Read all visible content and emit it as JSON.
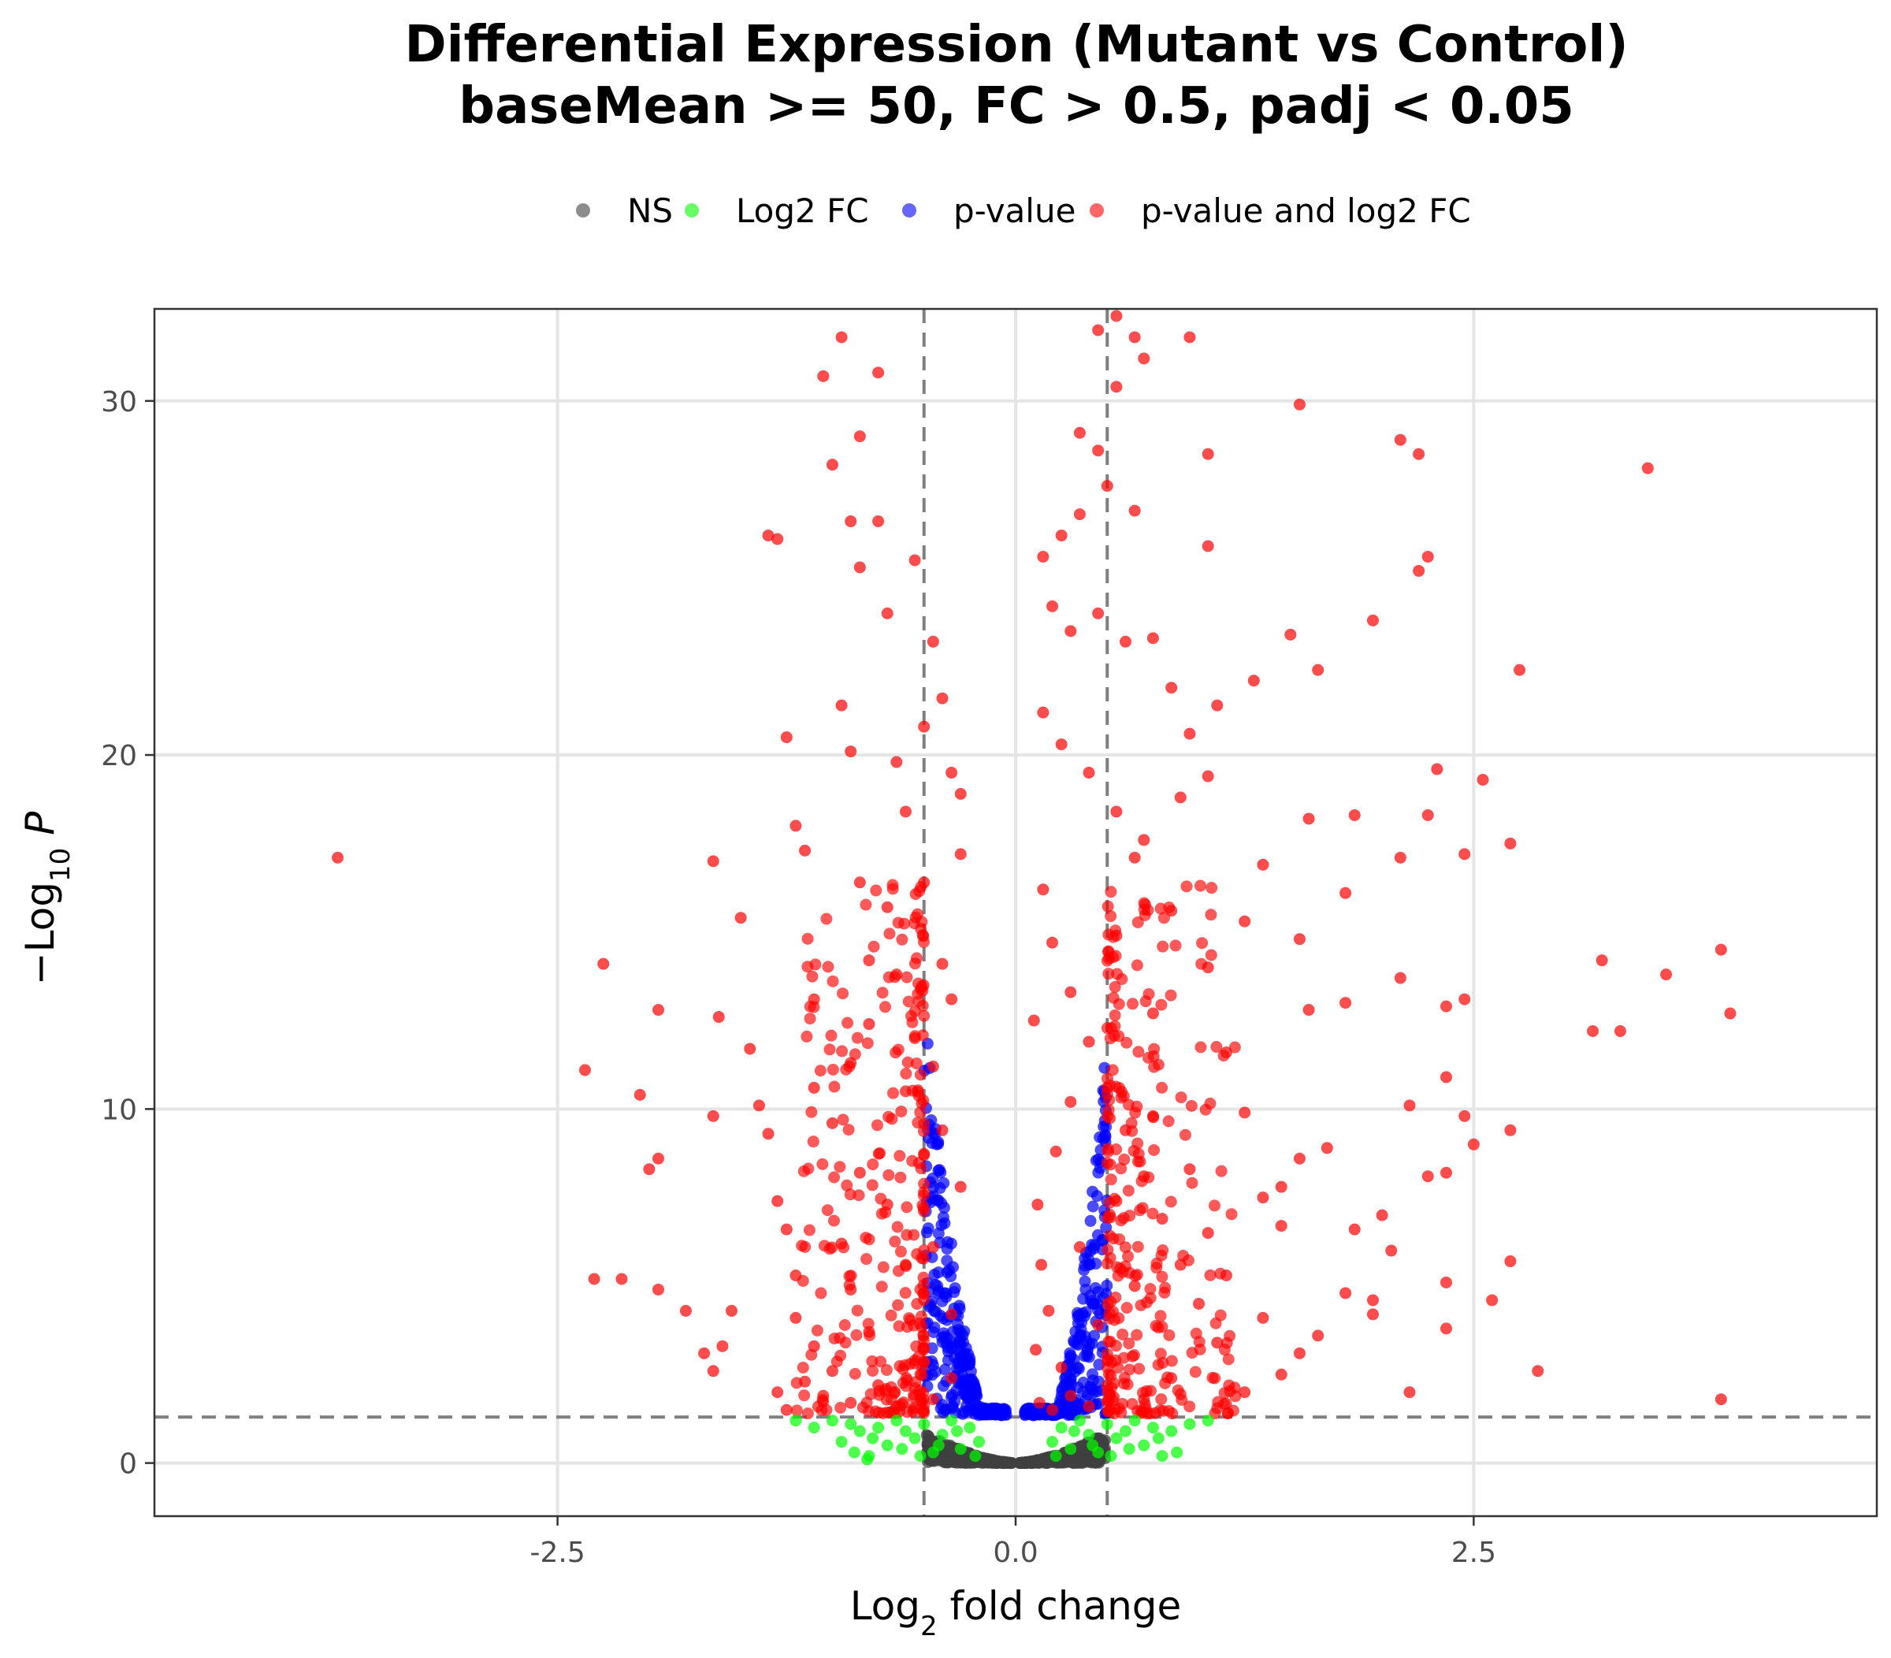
{
  "chart_data": {
    "type": "scatter",
    "title": "Differential Expression (Mutant vs Control)",
    "subtitle": "baseMean >= 50, FC > 0.5, padj < 0.05",
    "xlabel": {
      "prefix": "Log",
      "sub": "2",
      "suffix": " fold change"
    },
    "ylabel": {
      "prefix": "−Log",
      "sub": "10",
      "suffix": " P"
    },
    "xlim": [
      -4.7,
      4.7
    ],
    "ylim": [
      -1.5,
      32.6
    ],
    "x_ticks": [
      -2.5,
      0,
      2.5
    ],
    "x_tick_labels": [
      "-2.5",
      "0.0",
      "2.5"
    ],
    "y_ticks": [
      0,
      10,
      20,
      30
    ],
    "y_tick_labels": [
      "0",
      "10",
      "20",
      "30"
    ],
    "thresholds": {
      "fc": 0.5,
      "neg_log10_p": 1.3
    },
    "grid": true,
    "legend_position": "top",
    "series": [
      {
        "name": "NS",
        "color": "#404040"
      },
      {
        "name": "Log2 FC",
        "color": "#00ff00"
      },
      {
        "name": "p-value",
        "color": "#0000ff"
      },
      {
        "name": "p-value and log2 FC",
        "color": "#ff0000"
      }
    ],
    "points": [
      [
        -3.7,
        17.1,
        3
      ],
      [
        -2.35,
        11.1,
        3
      ],
      [
        -2.25,
        14.1,
        3
      ],
      [
        -2.3,
        5.2,
        3
      ],
      [
        -2.15,
        5.2,
        3
      ],
      [
        -2.0,
        8.3,
        3
      ],
      [
        -1.95,
        8.6,
        3
      ],
      [
        -2.05,
        10.4,
        3
      ],
      [
        -1.95,
        12.8,
        3
      ],
      [
        -1.95,
        4.9,
        3
      ],
      [
        -1.8,
        4.3,
        3
      ],
      [
        -1.7,
        3.1,
        3
      ],
      [
        -1.6,
        3.3,
        3
      ],
      [
        -1.55,
        4.3,
        3
      ],
      [
        -1.65,
        2.6,
        3
      ],
      [
        -1.65,
        9.8,
        3
      ],
      [
        -1.62,
        12.6,
        3
      ],
      [
        -1.65,
        17.0,
        3
      ],
      [
        -1.5,
        15.4,
        3
      ],
      [
        -1.45,
        11.7,
        3
      ],
      [
        -1.4,
        10.1,
        3
      ],
      [
        -1.35,
        9.3,
        3
      ],
      [
        -1.3,
        7.4,
        3
      ],
      [
        -1.25,
        6.6,
        3
      ],
      [
        -1.2,
        5.3,
        3
      ],
      [
        -1.35,
        26.2,
        3
      ],
      [
        -1.3,
        26.1,
        3
      ],
      [
        -1.25,
        20.5,
        3
      ],
      [
        -1.2,
        18.0,
        3
      ],
      [
        -1.15,
        17.3,
        3
      ],
      [
        -1.1,
        13.1,
        3
      ],
      [
        -1.05,
        30.7,
        3
      ],
      [
        -1.0,
        28.2,
        3
      ],
      [
        -0.95,
        31.8,
        3
      ],
      [
        -0.85,
        29.0,
        3
      ],
      [
        -0.9,
        26.6,
        3
      ],
      [
        -0.85,
        25.3,
        3
      ],
      [
        -0.75,
        30.8,
        3
      ],
      [
        -0.75,
        26.6,
        3
      ],
      [
        -0.95,
        21.4,
        3
      ],
      [
        -0.9,
        20.1,
        3
      ],
      [
        -0.85,
        16.4,
        3
      ],
      [
        -0.8,
        12.4,
        3
      ],
      [
        -0.7,
        24.0,
        3
      ],
      [
        -0.65,
        19.8,
        3
      ],
      [
        -0.6,
        18.4,
        3
      ],
      [
        -0.55,
        25.5,
        3
      ],
      [
        -0.45,
        23.2,
        3
      ],
      [
        -0.5,
        20.8,
        3
      ],
      [
        -0.4,
        21.6,
        3
      ],
      [
        -0.35,
        19.5,
        3
      ],
      [
        -0.3,
        18.9,
        3
      ],
      [
        -1.1,
        10.6,
        3
      ],
      [
        -1.0,
        9.6,
        3
      ],
      [
        -0.9,
        11.3,
        3
      ],
      [
        -0.85,
        8.2,
        3
      ],
      [
        -0.8,
        14.2,
        3
      ],
      [
        -0.7,
        15.7,
        3
      ],
      [
        -0.65,
        13.8,
        3
      ],
      [
        -0.6,
        10.5,
        3
      ],
      [
        -0.55,
        12.0,
        3
      ],
      [
        -0.5,
        16.4,
        3
      ],
      [
        -0.45,
        11.2,
        3
      ],
      [
        -0.4,
        14.1,
        3
      ],
      [
        -0.35,
        13.1,
        3
      ],
      [
        -0.3,
        17.2,
        3
      ],
      [
        -1.2,
        4.1,
        3
      ],
      [
        -1.1,
        3.3,
        3
      ],
      [
        -1.0,
        2.6,
        3
      ],
      [
        -0.95,
        6.2,
        3
      ],
      [
        -0.9,
        4.9,
        3
      ],
      [
        -0.8,
        3.7,
        3
      ],
      [
        -0.7,
        7.3,
        3
      ],
      [
        -0.6,
        5.6,
        3
      ],
      [
        -0.5,
        8.7,
        3
      ],
      [
        -0.45,
        6.1,
        3
      ],
      [
        -0.4,
        9.4,
        3
      ],
      [
        -0.35,
        4.2,
        3
      ],
      [
        -0.3,
        7.8,
        3
      ],
      [
        -1.3,
        2.0,
        3
      ],
      [
        -1.25,
        1.5,
        3
      ],
      [
        -1.15,
        2.3,
        3
      ],
      [
        -1.05,
        1.9,
        3
      ],
      [
        -0.9,
        1.7,
        3
      ],
      [
        -0.75,
        2.2,
        3
      ],
      [
        -0.65,
        1.6,
        3
      ],
      [
        -0.55,
        2.9,
        3
      ],
      [
        -0.45,
        1.8,
        3
      ],
      [
        -0.35,
        2.4,
        3
      ],
      [
        0.45,
        32.0,
        3
      ],
      [
        0.55,
        32.4,
        3
      ],
      [
        0.65,
        31.8,
        3
      ],
      [
        0.7,
        31.2,
        3
      ],
      [
        0.55,
        30.4,
        3
      ],
      [
        0.95,
        31.8,
        3
      ],
      [
        0.35,
        29.1,
        3
      ],
      [
        0.45,
        28.6,
        3
      ],
      [
        1.05,
        28.5,
        3
      ],
      [
        0.5,
        27.6,
        3
      ],
      [
        0.35,
        26.8,
        3
      ],
      [
        0.25,
        26.2,
        3
      ],
      [
        0.65,
        26.9,
        3
      ],
      [
        0.15,
        25.6,
        3
      ],
      [
        1.05,
        25.9,
        3
      ],
      [
        1.55,
        29.9,
        3
      ],
      [
        2.1,
        28.9,
        3
      ],
      [
        2.2,
        28.5,
        3
      ],
      [
        2.25,
        25.6,
        3
      ],
      [
        2.2,
        25.2,
        3
      ],
      [
        3.45,
        28.1,
        3
      ],
      [
        0.2,
        24.2,
        3
      ],
      [
        0.3,
        23.5,
        3
      ],
      [
        0.45,
        24.0,
        3
      ],
      [
        0.6,
        23.2,
        3
      ],
      [
        0.75,
        23.3,
        3
      ],
      [
        0.85,
        21.9,
        3
      ],
      [
        1.5,
        23.4,
        3
      ],
      [
        1.65,
        22.4,
        3
      ],
      [
        1.95,
        23.8,
        3
      ],
      [
        2.75,
        22.4,
        3
      ],
      [
        0.15,
        21.2,
        3
      ],
      [
        0.25,
        20.3,
        3
      ],
      [
        0.4,
        19.5,
        3
      ],
      [
        0.55,
        18.4,
        3
      ],
      [
        0.7,
        17.6,
        3
      ],
      [
        0.95,
        20.6,
        3
      ],
      [
        1.05,
        19.4,
        3
      ],
      [
        1.6,
        18.2,
        3
      ],
      [
        1.85,
        18.3,
        3
      ],
      [
        2.3,
        19.6,
        3
      ],
      [
        2.55,
        19.3,
        3
      ],
      [
        2.25,
        18.3,
        3
      ],
      [
        2.1,
        17.1,
        3
      ],
      [
        2.45,
        17.2,
        3
      ],
      [
        2.7,
        17.5,
        3
      ],
      [
        1.8,
        16.1,
        3
      ],
      [
        1.55,
        14.8,
        3
      ],
      [
        1.6,
        12.8,
        3
      ],
      [
        1.8,
        13.0,
        3
      ],
      [
        2.1,
        13.7,
        3
      ],
      [
        2.35,
        12.9,
        3
      ],
      [
        2.45,
        13.1,
        3
      ],
      [
        3.2,
        14.2,
        3
      ],
      [
        3.55,
        13.8,
        3
      ],
      [
        3.85,
        14.5,
        3
      ],
      [
        3.9,
        12.7,
        3
      ],
      [
        3.3,
        12.2,
        3
      ],
      [
        3.15,
        12.2,
        3
      ],
      [
        2.15,
        10.1,
        3
      ],
      [
        2.35,
        10.9,
        3
      ],
      [
        2.45,
        9.8,
        3
      ],
      [
        2.5,
        9.0,
        3
      ],
      [
        2.7,
        9.4,
        3
      ],
      [
        2.25,
        8.1,
        3
      ],
      [
        2.35,
        8.2,
        3
      ],
      [
        1.7,
        8.9,
        3
      ],
      [
        1.55,
        8.6,
        3
      ],
      [
        1.35,
        7.5,
        3
      ],
      [
        1.45,
        7.8,
        3
      ],
      [
        2.0,
        7.0,
        3
      ],
      [
        2.05,
        6.0,
        3
      ],
      [
        1.85,
        6.6,
        3
      ],
      [
        2.35,
        5.1,
        3
      ],
      [
        2.7,
        5.7,
        3
      ],
      [
        2.6,
        4.6,
        3
      ],
      [
        2.35,
        3.8,
        3
      ],
      [
        2.85,
        2.6,
        3
      ],
      [
        2.15,
        2.0,
        3
      ],
      [
        3.85,
        1.8,
        3
      ],
      [
        1.95,
        4.6,
        3
      ],
      [
        1.8,
        4.8,
        3
      ],
      [
        1.95,
        4.2,
        3
      ],
      [
        1.65,
        3.6,
        3
      ],
      [
        1.55,
        3.1,
        3
      ],
      [
        1.45,
        2.5,
        3
      ],
      [
        1.25,
        2.0,
        3
      ],
      [
        1.1,
        3.4,
        3
      ],
      [
        1.0,
        4.5,
        3
      ],
      [
        0.9,
        5.6,
        3
      ],
      [
        0.8,
        6.9,
        3
      ],
      [
        0.7,
        8.1,
        3
      ],
      [
        0.6,
        9.4,
        3
      ],
      [
        0.5,
        10.6,
        3
      ],
      [
        0.4,
        11.9,
        3
      ],
      [
        0.3,
        13.3,
        3
      ],
      [
        0.2,
        14.7,
        3
      ],
      [
        0.15,
        16.2,
        3
      ],
      [
        0.1,
        12.5,
        3
      ],
      [
        0.12,
        7.3,
        3
      ],
      [
        0.18,
        4.3,
        3
      ],
      [
        0.25,
        2.7,
        3
      ],
      [
        0.35,
        6.1,
        3
      ],
      [
        0.45,
        3.9,
        3
      ],
      [
        0.55,
        7.4,
        3
      ],
      [
        0.65,
        5.0,
        3
      ],
      [
        0.75,
        9.8,
        3
      ],
      [
        0.85,
        2.4,
        3
      ],
      [
        0.95,
        8.3,
        3
      ],
      [
        1.05,
        6.5,
        3
      ],
      [
        1.15,
        5.3,
        3
      ],
      [
        1.25,
        9.9,
        3
      ],
      [
        1.35,
        4.1,
        3
      ],
      [
        1.45,
        6.7,
        3
      ],
      [
        1.15,
        11.6,
        3
      ],
      [
        1.05,
        14.0,
        3
      ],
      [
        0.85,
        15.6,
        3
      ],
      [
        0.65,
        17.1,
        3
      ],
      [
        1.25,
        15.3,
        3
      ],
      [
        1.35,
        16.9,
        3
      ],
      [
        0.9,
        18.8,
        3
      ],
      [
        1.1,
        21.4,
        3
      ],
      [
        1.3,
        22.1,
        3
      ],
      [
        0.75,
        12.7,
        3
      ],
      [
        0.55,
        14.9,
        3
      ],
      [
        0.3,
        10.2,
        3
      ],
      [
        0.22,
        8.8,
        3
      ],
      [
        0.14,
        5.6,
        3
      ],
      [
        0.11,
        3.2,
        3
      ],
      [
        0.13,
        1.7,
        3
      ],
      [
        0.2,
        1.5,
        3
      ],
      [
        0.3,
        1.9,
        3
      ],
      [
        0.4,
        1.6,
        3
      ],
      [
        0.5,
        2.2,
        3
      ],
      [
        0.7,
        1.8,
        3
      ],
      [
        -0.2,
        0.6,
        1
      ],
      [
        -0.25,
        1.0,
        1
      ],
      [
        -0.3,
        0.4,
        1
      ],
      [
        -0.35,
        1.2,
        1
      ],
      [
        -0.4,
        0.8,
        1
      ],
      [
        -0.45,
        0.3,
        1
      ],
      [
        -0.5,
        1.1,
        1
      ],
      [
        -0.55,
        0.7,
        1
      ],
      [
        -0.6,
        0.9,
        1
      ],
      [
        -0.65,
        1.2,
        1
      ],
      [
        -0.7,
        0.5,
        1
      ],
      [
        -0.75,
        1.0,
        1
      ],
      [
        -0.8,
        0.2,
        1
      ],
      [
        -0.85,
        0.9,
        1
      ],
      [
        -0.9,
        1.1,
        1
      ],
      [
        -0.95,
        0.6,
        1
      ],
      [
        -1.0,
        1.2,
        1
      ],
      [
        -1.1,
        1.0,
        1
      ],
      [
        -1.2,
        1.2,
        1
      ],
      [
        -0.22,
        0.2,
        1
      ],
      [
        -0.32,
        0.9,
        1
      ],
      [
        -0.42,
        0.5,
        1
      ],
      [
        -0.52,
        0.2,
        1
      ],
      [
        -0.62,
        0.4,
        1
      ],
      [
        -0.78,
        0.7,
        1
      ],
      [
        -0.88,
        0.3,
        1
      ],
      [
        -0.81,
        0.1,
        1
      ],
      [
        0.2,
        0.6,
        1
      ],
      [
        0.25,
        1.0,
        1
      ],
      [
        0.3,
        0.4,
        1
      ],
      [
        0.35,
        1.2,
        1
      ],
      [
        0.4,
        0.8,
        1
      ],
      [
        0.45,
        0.3,
        1
      ],
      [
        0.5,
        1.1,
        1
      ],
      [
        0.55,
        0.7,
        1
      ],
      [
        0.6,
        0.9,
        1
      ],
      [
        0.65,
        1.2,
        1
      ],
      [
        0.7,
        0.5,
        1
      ],
      [
        0.75,
        1.0,
        1
      ],
      [
        0.8,
        0.2,
        1
      ],
      [
        0.85,
        0.9,
        1
      ],
      [
        0.95,
        1.1,
        1
      ],
      [
        1.05,
        1.2,
        1
      ],
      [
        0.22,
        0.2,
        1
      ],
      [
        0.32,
        0.9,
        1
      ],
      [
        0.42,
        0.5,
        1
      ],
      [
        0.52,
        0.2,
        1
      ],
      [
        0.62,
        0.4,
        1
      ],
      [
        0.78,
        0.7,
        1
      ],
      [
        0.88,
        0.3,
        1
      ]
    ]
  }
}
